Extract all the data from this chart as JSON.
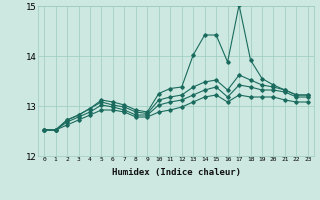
{
  "xlabel": "Humidex (Indice chaleur)",
  "bg_color": "#cce8e0",
  "line_color": "#1a6b5e",
  "grid_color": "#9cccc0",
  "xlim": [
    -0.5,
    23.5
  ],
  "ylim": [
    12,
    15
  ],
  "yticks": [
    12,
    13,
    14,
    15
  ],
  "xticks": [
    0,
    1,
    2,
    3,
    4,
    5,
    6,
    7,
    8,
    9,
    10,
    11,
    12,
    13,
    14,
    15,
    16,
    17,
    18,
    19,
    20,
    21,
    22,
    23
  ],
  "series": [
    [
      12.52,
      12.52,
      12.72,
      12.82,
      12.95,
      13.12,
      13.08,
      13.02,
      12.92,
      12.88,
      13.25,
      13.35,
      13.38,
      14.02,
      14.42,
      14.42,
      13.88,
      15.02,
      13.92,
      13.55,
      13.42,
      13.32,
      13.22,
      13.22
    ],
    [
      12.52,
      12.52,
      12.72,
      12.82,
      12.95,
      13.08,
      13.02,
      12.98,
      12.88,
      12.85,
      13.12,
      13.18,
      13.22,
      13.38,
      13.48,
      13.52,
      13.32,
      13.62,
      13.52,
      13.42,
      13.38,
      13.32,
      13.22,
      13.22
    ],
    [
      12.52,
      12.52,
      12.68,
      12.78,
      12.88,
      13.02,
      12.98,
      12.92,
      12.82,
      12.82,
      13.02,
      13.08,
      13.12,
      13.22,
      13.32,
      13.38,
      13.18,
      13.42,
      13.38,
      13.32,
      13.32,
      13.28,
      13.18,
      13.18
    ],
    [
      12.52,
      12.52,
      12.62,
      12.72,
      12.82,
      12.92,
      12.92,
      12.88,
      12.78,
      12.78,
      12.88,
      12.92,
      12.98,
      13.08,
      13.18,
      13.22,
      13.08,
      13.22,
      13.18,
      13.18,
      13.18,
      13.12,
      13.08,
      13.08
    ]
  ]
}
